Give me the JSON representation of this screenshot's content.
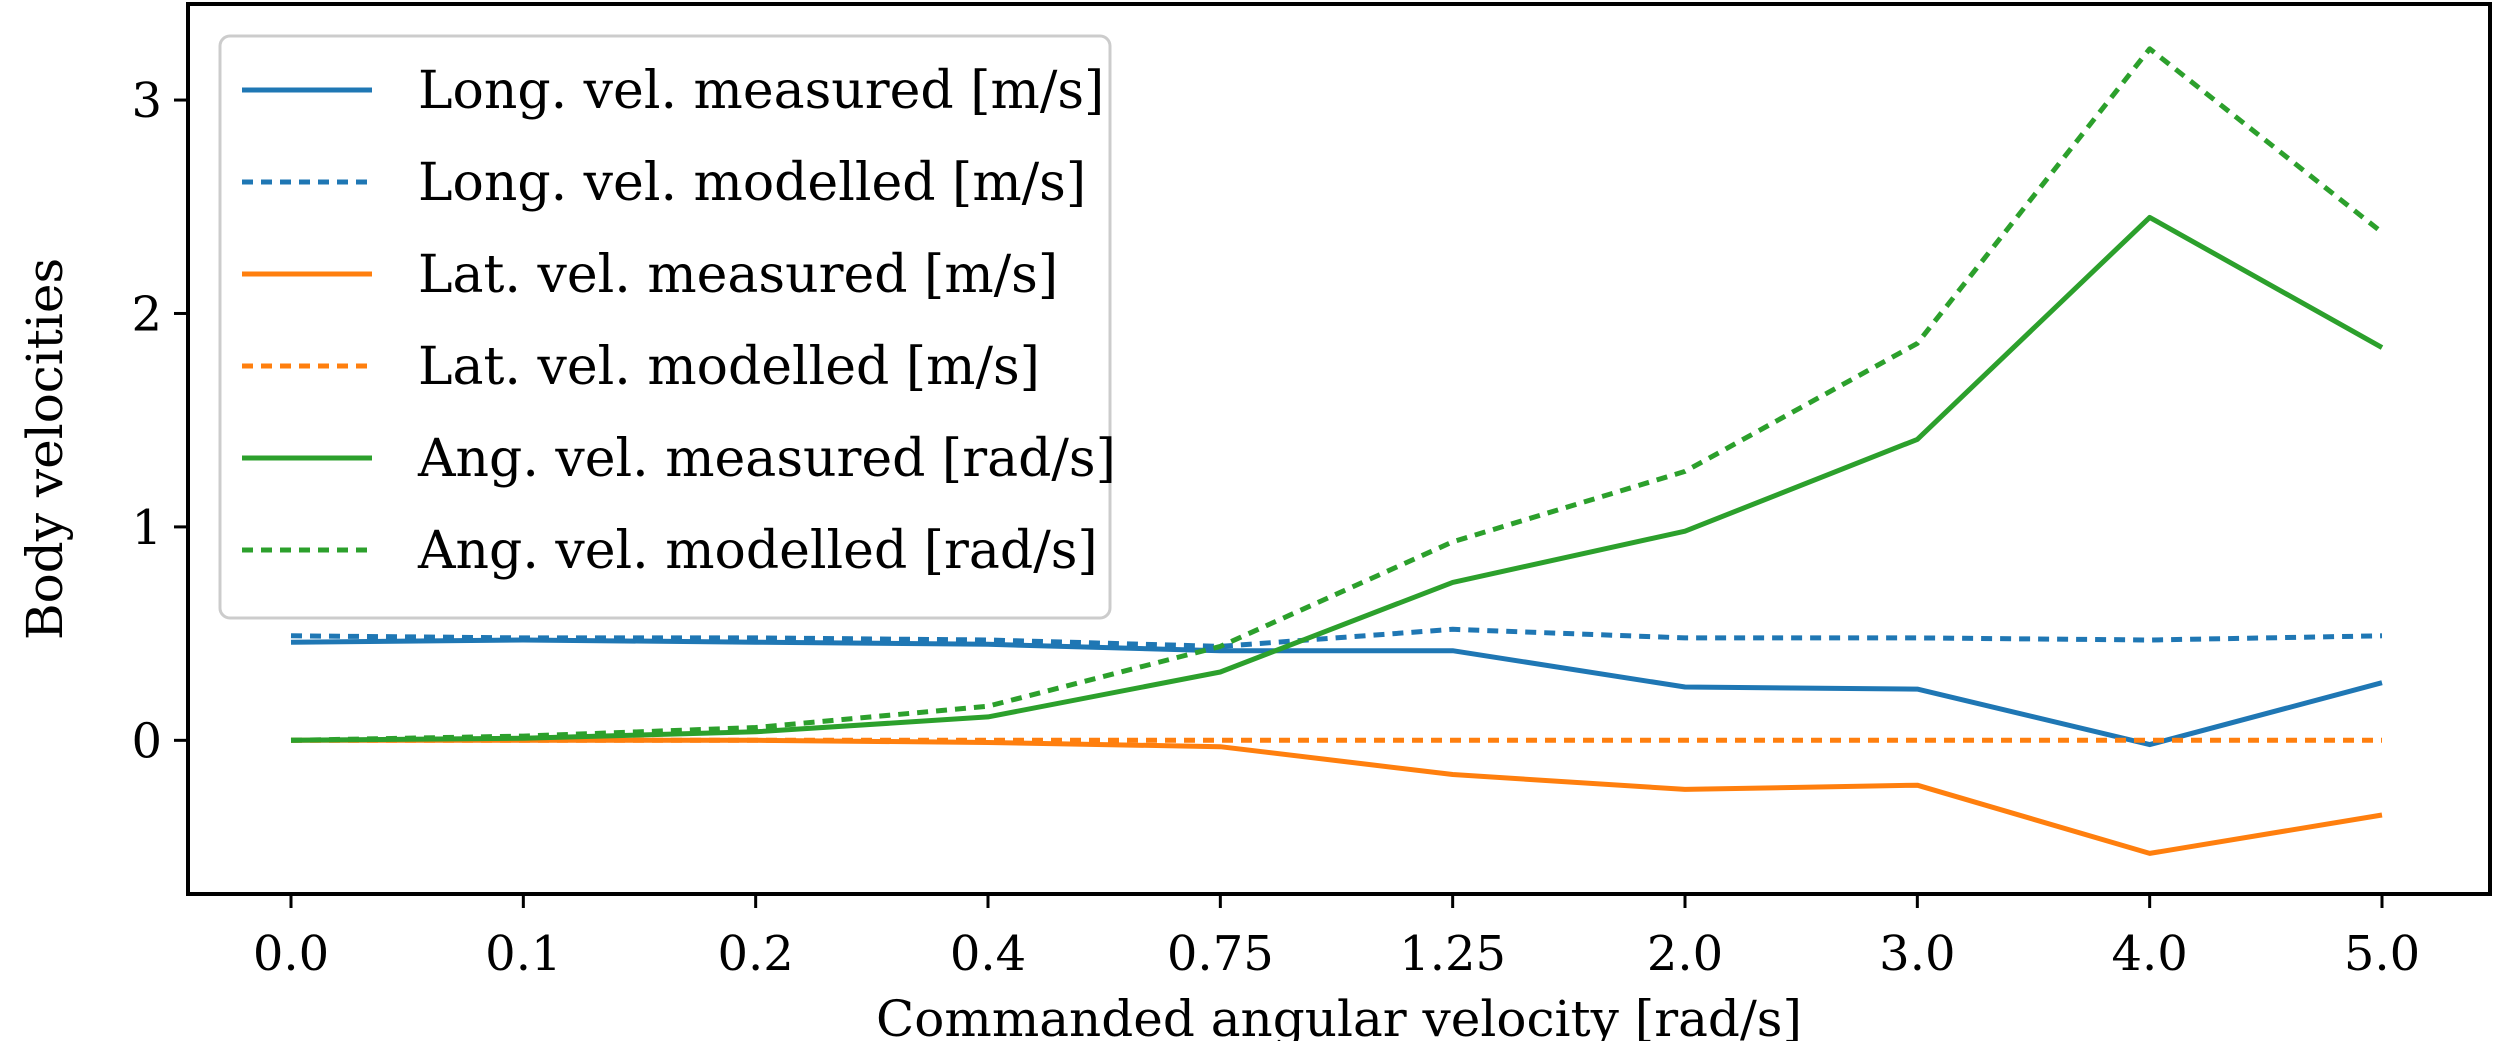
{
  "chart_data": {
    "type": "line",
    "title": "",
    "xlabel": "Commanded angular velocity [rad/s]",
    "ylabel": "Body velocities",
    "categories": [
      "0.0",
      "0.1",
      "0.2",
      "0.4",
      "0.75",
      "1.25",
      "2.0",
      "3.0",
      "4.0",
      "5.0"
    ],
    "ylim": [
      -0.72,
      3.45
    ],
    "yticks": [
      0,
      1,
      2,
      3
    ],
    "grid": false,
    "legend_position": "top-left",
    "series": [
      {
        "name": "Long. vel. measured [m/s]",
        "color": "#1f77b4",
        "style": "solid",
        "values": [
          0.46,
          0.47,
          0.46,
          0.45,
          0.42,
          0.42,
          0.25,
          0.24,
          -0.02,
          0.27
        ]
      },
      {
        "name": "Long. vel. modelled [m/s]",
        "color": "#1f77b4",
        "style": "dotted",
        "values": [
          0.49,
          0.48,
          0.48,
          0.47,
          0.44,
          0.52,
          0.48,
          0.48,
          0.47,
          0.49
        ]
      },
      {
        "name": "Lat. vel. measured [m/s]",
        "color": "#ff7f0e",
        "style": "solid",
        "values": [
          0.0,
          0.0,
          0.0,
          -0.01,
          -0.03,
          -0.16,
          -0.23,
          -0.21,
          -0.53,
          -0.35
        ]
      },
      {
        "name": "Lat. vel. modelled [m/s]",
        "color": "#ff7f0e",
        "style": "dotted",
        "values": [
          0.0,
          0.0,
          0.0,
          0.0,
          0.0,
          0.0,
          0.0,
          0.0,
          0.0,
          0.0
        ]
      },
      {
        "name": "Ang. vel. measured [rad/s]",
        "color": "#2ca02c",
        "style": "solid",
        "values": [
          0.0,
          0.01,
          0.04,
          0.11,
          0.32,
          0.74,
          0.98,
          1.41,
          2.45,
          1.84
        ]
      },
      {
        "name": "Ang. vel. modelled [rad/s]",
        "color": "#2ca02c",
        "style": "dotted",
        "values": [
          0.0,
          0.02,
          0.06,
          0.16,
          0.44,
          0.93,
          1.26,
          1.86,
          3.24,
          2.38
        ]
      }
    ]
  }
}
